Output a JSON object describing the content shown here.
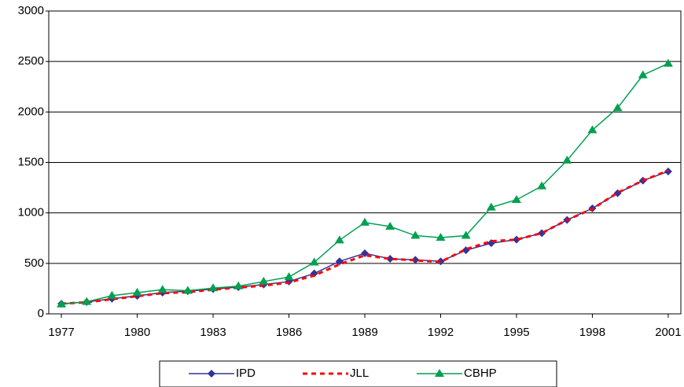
{
  "chart_data": {
    "type": "line",
    "x": [
      1977,
      1978,
      1979,
      1980,
      1981,
      1982,
      1983,
      1984,
      1985,
      1986,
      1987,
      1988,
      1989,
      1990,
      1991,
      1992,
      1993,
      1994,
      1995,
      1996,
      1997,
      1998,
      1999,
      2000,
      2001
    ],
    "series": [
      {
        "name": "IPD",
        "color": "#333399",
        "marker": "diamond",
        "dashed": false,
        "values": [
          100,
          118,
          150,
          178,
          210,
          225,
          245,
          265,
          290,
          320,
          400,
          520,
          600,
          545,
          535,
          520,
          630,
          700,
          735,
          800,
          930,
          1045,
          1195,
          1320,
          1410
        ]
      },
      {
        "name": "JLL",
        "color": "#ff0000",
        "marker": "none",
        "dashed": true,
        "values": [
          100,
          115,
          145,
          175,
          205,
          215,
          240,
          260,
          280,
          310,
          380,
          490,
          580,
          545,
          530,
          515,
          640,
          720,
          735,
          800,
          930,
          1040,
          1200,
          1320,
          1420
        ]
      },
      {
        "name": "CBHP",
        "color": "#00a050",
        "marker": "triangle",
        "dashed": false,
        "values": [
          95,
          120,
          180,
          210,
          240,
          230,
          255,
          275,
          320,
          365,
          510,
          730,
          905,
          865,
          775,
          755,
          775,
          1055,
          1130,
          1265,
          1520,
          1820,
          2040,
          2365,
          2480
        ]
      }
    ],
    "xlim": [
      1976.5,
      2001.5
    ],
    "xticks": [
      1977,
      1980,
      1983,
      1986,
      1989,
      1992,
      1995,
      1998,
      2001
    ],
    "ylim": [
      0,
      3000
    ],
    "yticks": [
      0,
      500,
      1000,
      1500,
      2000,
      2500,
      3000
    ],
    "grid": true,
    "legend": "bottom"
  }
}
